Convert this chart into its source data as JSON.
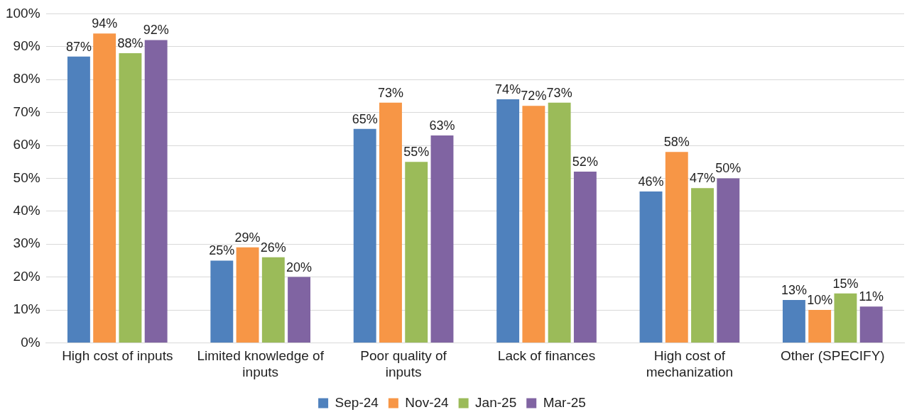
{
  "chart_data": {
    "type": "bar",
    "categories": [
      "High cost of inputs",
      "Limited knowledge of inputs",
      "Poor quality of inputs",
      "Lack of finances",
      "High cost of mechanization",
      "Other (SPECIFY)"
    ],
    "series": [
      {
        "name": "Sep-24",
        "color": "#4f81bd",
        "values": [
          87,
          25,
          65,
          74,
          46,
          13
        ],
        "value_labels": [
          "87%",
          "25%",
          "65%",
          "74%",
          "46%",
          "13%"
        ]
      },
      {
        "name": "Nov-24",
        "color": "#f79646",
        "values": [
          94,
          29,
          73,
          72,
          58,
          10
        ],
        "value_labels": [
          "94%",
          "29%",
          "73%",
          "72%",
          "58%",
          "10%"
        ]
      },
      {
        "name": "Jan-25",
        "color": "#9bbb59",
        "values": [
          88,
          26,
          55,
          73,
          47,
          15
        ],
        "value_labels": [
          "88%",
          "26%",
          "55%",
          "73%",
          "47%",
          "15%"
        ]
      },
      {
        "name": "Mar-25",
        "color": "#8064a2",
        "values": [
          92,
          20,
          63,
          52,
          50,
          11
        ],
        "value_labels": [
          "92%",
          "20%",
          "63%",
          "52%",
          "50%",
          "11%"
        ]
      }
    ],
    "ylim": [
      0,
      100
    ],
    "yticks": [
      {
        "value": 0,
        "label": "0%"
      },
      {
        "value": 10,
        "label": "10%"
      },
      {
        "value": 20,
        "label": "20%"
      },
      {
        "value": 30,
        "label": "30%"
      },
      {
        "value": 40,
        "label": "40%"
      },
      {
        "value": 50,
        "label": "50%"
      },
      {
        "value": 60,
        "label": "60%"
      },
      {
        "value": 70,
        "label": "70%"
      },
      {
        "value": 80,
        "label": "80%"
      },
      {
        "value": 90,
        "label": "90%"
      },
      {
        "value": 100,
        "label": "100%"
      }
    ],
    "grid": "y",
    "legend": "bottom"
  }
}
